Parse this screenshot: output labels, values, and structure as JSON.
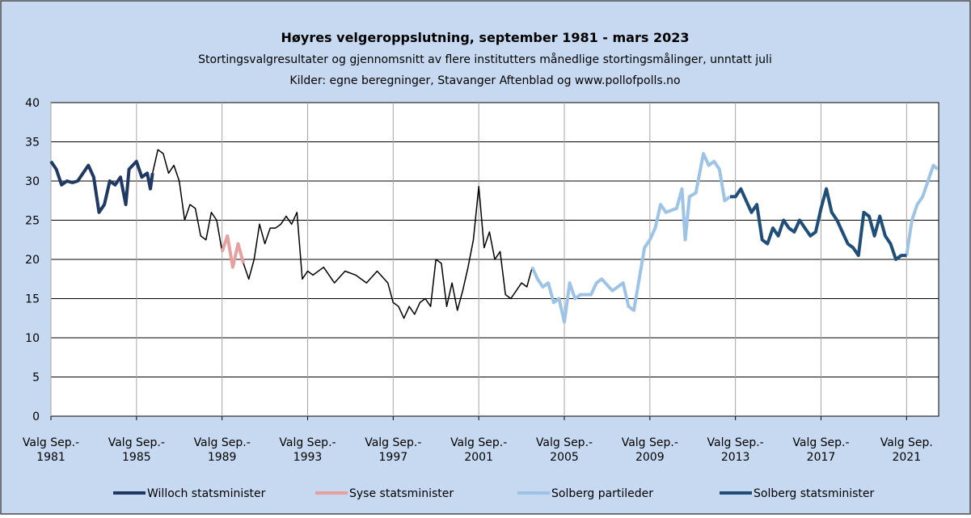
{
  "chart_data": {
    "type": "line",
    "title": "Høyres velgeroppslutning, september 1981 - mars 2023",
    "subtitle": "Stortingsvalgresultater og gjennomsnitt av flere institutters månedlige stortingsmålinger, unntatt juli",
    "source": "Kilder: egne beregninger, Stavanger Aftenblad og www.pollofpolls.no",
    "xlim": [
      1981.75,
      2023.25
    ],
    "ylim": [
      0,
      40
    ],
    "yticks": [
      0,
      5,
      10,
      15,
      20,
      25,
      30,
      35,
      40
    ],
    "xticks": [
      {
        "value": 1981.75,
        "label": "Valg Sep.-\n1981"
      },
      {
        "value": 1985.75,
        "label": "Valg Sep.-\n1985"
      },
      {
        "value": 1989.75,
        "label": "Valg Sep.-\n1989"
      },
      {
        "value": 1993.75,
        "label": "Valg Sep.-\n1993"
      },
      {
        "value": 1997.75,
        "label": "Valg Sep.-\n1997"
      },
      {
        "value": 2001.75,
        "label": "Valg Sep.-\n2001"
      },
      {
        "value": 2005.75,
        "label": "Valg Sep.-\n2005"
      },
      {
        "value": 2009.75,
        "label": "Valg Sep.-\n2009"
      },
      {
        "value": 2013.75,
        "label": "Valg Sep.-\n2013"
      },
      {
        "value": 2017.75,
        "label": "Valg Sep.-\n2017"
      },
      {
        "value": 2021.75,
        "label": "Valg Sep.\n2021"
      }
    ],
    "grid": true,
    "legend": "bottom",
    "series": [
      {
        "name": "Willoch statsminister",
        "color": "#1f3864",
        "x": [
          1981.75,
          1982.0,
          1982.25,
          1982.5,
          1982.75,
          1983.0,
          1983.25,
          1983.5,
          1983.75,
          1984.0,
          1984.25,
          1984.5,
          1984.75,
          1985.0,
          1985.25,
          1985.4,
          1985.75,
          1986.0,
          1986.25,
          1986.4,
          1986.5
        ],
        "values": [
          32.5,
          31.5,
          29.5,
          30,
          29.8,
          30,
          31,
          32,
          30.5,
          26,
          27,
          30,
          29.5,
          30.5,
          27,
          31.5,
          32.5,
          30.5,
          31,
          29,
          31
        ]
      },
      {
        "color": "#000000",
        "x": [
          1986.5,
          1986.75,
          1987.0,
          1987.25,
          1987.5,
          1987.75,
          1988.0,
          1988.25,
          1988.5,
          1988.75,
          1989.0,
          1989.25,
          1989.5,
          1989.75,
          1990.2,
          1990.75,
          1991.0,
          1991.25,
          1991.5,
          1991.75,
          1992.0,
          1992.25,
          1992.5,
          1992.75,
          1993.0,
          1993.25,
          1993.5,
          1993.75,
          1994.0,
          1994.5,
          1995.0,
          1995.5,
          1996.0,
          1996.5,
          1997.0,
          1997.5,
          1997.75,
          1998.0,
          1998.25,
          1998.5,
          1998.75,
          1999.0,
          1999.25,
          1999.5,
          1999.75,
          2000.0,
          2000.25,
          2000.5,
          2000.75,
          2001.0,
          2001.25,
          2001.5,
          2001.75,
          2002.0,
          2002.25,
          2002.5,
          2002.75,
          2003.0,
          2003.25,
          2003.5,
          2003.75,
          2004.0,
          2004.25
        ],
        "values": [
          31,
          34,
          33.5,
          31,
          32,
          30,
          25,
          27,
          26.5,
          23,
          22.5,
          26,
          25,
          21,
          null,
          19.5,
          17.5,
          20,
          24.5,
          22,
          24,
          24,
          24.5,
          25.5,
          24.5,
          26,
          17.5,
          18.5,
          18,
          19,
          17,
          18.5,
          18,
          17,
          18.5,
          17,
          14.5,
          14,
          12.5,
          14,
          13,
          14.5,
          15,
          14,
          20,
          19.5,
          14,
          17,
          13.5,
          16,
          19,
          22.5,
          29.3,
          21.5,
          23.5,
          20,
          21,
          15.5,
          15,
          16,
          17,
          16.5,
          19
        ]
      },
      {
        "name": "Syse statsminister",
        "color": "#e6a0a0",
        "x": [
          1989.75,
          1990.0,
          1990.25,
          1990.5,
          1990.75
        ],
        "values": [
          21,
          23,
          19,
          22,
          19.5
        ]
      },
      {
        "name": "Solberg partileder",
        "color": "#9dc3e6",
        "x": [
          2004.25,
          2004.5,
          2004.75,
          2005.0,
          2005.25,
          2005.5,
          2005.75,
          2006.0,
          2006.25,
          2006.5,
          2007.0,
          2007.25,
          2007.5,
          2008.0,
          2008.5,
          2008.75,
          2009.0,
          2009.25,
          2009.5,
          2009.75,
          2010.0,
          2010.25,
          2010.5,
          2011.0,
          2011.25,
          2011.4,
          2011.6,
          2011.9,
          2012.25,
          2012.5,
          2012.75,
          2013.0,
          2013.25,
          2013.5,
          2017.75,
          2021.75,
          2022.0,
          2022.25,
          2022.5,
          2022.75,
          2023.0,
          2023.2
        ],
        "values": [
          19,
          17.5,
          16.5,
          17,
          14.5,
          15,
          12,
          17,
          15,
          15.5,
          15.5,
          17,
          17.5,
          16,
          17,
          14,
          13.5,
          17.5,
          21.5,
          22.5,
          24,
          27,
          26,
          26.5,
          29,
          22.5,
          28,
          28.5,
          33.5,
          32,
          32.5,
          31.5,
          27.5,
          28,
          null,
          20.5,
          25,
          27,
          28,
          30,
          32,
          31.5
        ]
      },
      {
        "name": "Solberg statsminister",
        "color": "#1f4e79",
        "x": [
          2013.5,
          2013.75,
          2014.0,
          2014.25,
          2014.5,
          2014.75,
          2015.0,
          2015.25,
          2015.5,
          2015.75,
          2016.0,
          2016.25,
          2016.5,
          2016.75,
          2017.0,
          2017.25,
          2017.5,
          2017.75,
          2018.0,
          2018.25,
          2018.5,
          2018.75,
          2019.0,
          2019.25,
          2019.5,
          2019.75,
          2020.0,
          2020.25,
          2020.5,
          2020.75,
          2021.0,
          2021.25,
          2021.5,
          2021.75
        ],
        "values": [
          28,
          28,
          29,
          27.5,
          26,
          27,
          22.5,
          22,
          24,
          23,
          25,
          24,
          23.5,
          25,
          24,
          23,
          23.5,
          26.5,
          29,
          26,
          25,
          23.5,
          22,
          21.5,
          20.5,
          26,
          25.5,
          23,
          25.5,
          23,
          22,
          20,
          20.5,
          20.5
        ]
      }
    ]
  }
}
